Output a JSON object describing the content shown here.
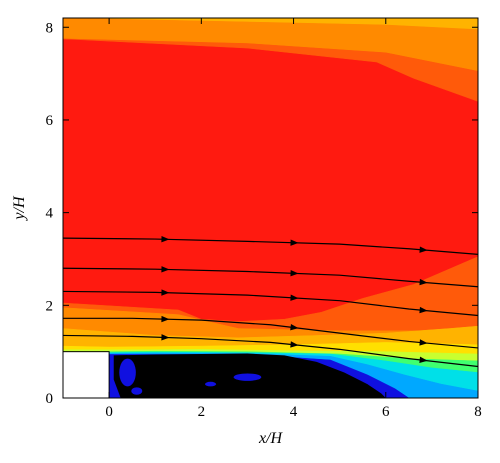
{
  "chart_data": {
    "type": "heatmap",
    "title": "",
    "xlabel": "x/H",
    "ylabel": "y/H",
    "xlim": [
      -1,
      8
    ],
    "ylim": [
      0,
      8.2
    ],
    "x_ticks": [
      0,
      2,
      4,
      6,
      8
    ],
    "y_ticks": [
      0,
      2,
      4,
      6,
      8
    ],
    "grid": false,
    "legend": "none",
    "step": {
      "x": [
        -1,
        0
      ],
      "y": [
        0,
        1
      ]
    },
    "colors": {
      "red": "#ff1a10",
      "orange_red": "#ff5a0a",
      "orange": "#ff8a00",
      "amber": "#ffb300",
      "yellow": "#ffe000",
      "lime": "#c8ff30",
      "green": "#40ff70",
      "cyan": "#00e0e8",
      "sky": "#00a8ff",
      "blue": "#1010e0",
      "recirculation": "#000000",
      "streamline": "#000000"
    },
    "contour_regions": [
      {
        "name": "top-yellow",
        "color_key": "amber",
        "points": [
          [
            -1,
            8.2
          ],
          [
            8,
            8.2
          ],
          [
            8,
            7.95
          ],
          [
            6,
            8.05
          ],
          [
            -1,
            8.2
          ]
        ]
      },
      {
        "name": "top-orange",
        "color_key": "orange",
        "points": [
          [
            -1,
            8.2
          ],
          [
            6,
            8.05
          ],
          [
            8,
            7.95
          ],
          [
            8,
            7.05
          ],
          [
            6,
            7.45
          ],
          [
            3,
            7.65
          ],
          [
            -1,
            7.75
          ]
        ]
      },
      {
        "name": "top-orange-red",
        "color_key": "orange_red",
        "points": [
          [
            -1,
            7.75
          ],
          [
            3,
            7.65
          ],
          [
            6,
            7.45
          ],
          [
            8,
            7.05
          ],
          [
            8,
            6.4
          ],
          [
            6.6,
            6.9
          ],
          [
            5.8,
            7.25
          ],
          [
            3,
            7.55
          ],
          [
            -1,
            7.75
          ]
        ]
      },
      {
        "name": "right-orange-red",
        "color_key": "orange_red",
        "points": [
          [
            8,
            3.05
          ],
          [
            7.3,
            2.75
          ],
          [
            6.6,
            2.45
          ],
          [
            5.5,
            2.15
          ],
          [
            4.6,
            1.85
          ],
          [
            3.8,
            1.7
          ],
          [
            2.8,
            1.65
          ],
          [
            2,
            1.7
          ],
          [
            1.5,
            1.9
          ],
          [
            -1,
            2.05
          ],
          [
            -1,
            1.95
          ],
          [
            1.5,
            1.8
          ],
          [
            2.8,
            1.5
          ],
          [
            5,
            1.45
          ],
          [
            6.5,
            1.45
          ],
          [
            8,
            1.45
          ]
        ]
      },
      {
        "name": "band-orange",
        "color_key": "orange",
        "points": [
          [
            -1,
            1.95
          ],
          [
            1.5,
            1.8
          ],
          [
            2.8,
            1.5
          ],
          [
            5,
            1.45
          ],
          [
            6.5,
            1.45
          ],
          [
            8,
            1.45
          ],
          [
            8,
            1.55
          ],
          [
            7.4,
            1.5
          ],
          [
            6,
            1.4
          ],
          [
            4.5,
            1.35
          ],
          [
            2.8,
            1.3
          ],
          [
            1,
            1.35
          ],
          [
            -1,
            1.5
          ]
        ]
      },
      {
        "name": "band-amber",
        "color_key": "amber",
        "points": [
          [
            -1,
            1.5
          ],
          [
            1,
            1.35
          ],
          [
            2.8,
            1.3
          ],
          [
            4.5,
            1.35
          ],
          [
            6,
            1.4
          ],
          [
            7.4,
            1.5
          ],
          [
            8,
            1.55
          ],
          [
            8,
            1.15
          ],
          [
            6,
            1.2
          ],
          [
            4,
            1.15
          ],
          [
            2,
            1.12
          ],
          [
            0,
            1.1
          ],
          [
            -1,
            1.12
          ]
        ]
      },
      {
        "name": "band-yellow",
        "color_key": "yellow",
        "points": [
          [
            -1,
            1.12
          ],
          [
            0,
            1.1
          ],
          [
            2,
            1.12
          ],
          [
            4,
            1.15
          ],
          [
            6,
            1.2
          ],
          [
            8,
            1.15
          ],
          [
            8,
            0.95
          ],
          [
            6,
            1.0
          ],
          [
            4,
            1.02
          ],
          [
            2,
            1.05
          ],
          [
            0,
            1.04
          ],
          [
            -1,
            1.04
          ]
        ]
      },
      {
        "name": "band-lime",
        "color_key": "lime",
        "points": [
          [
            -1,
            1.04
          ],
          [
            0,
            1.04
          ],
          [
            2,
            1.05
          ],
          [
            4,
            1.02
          ],
          [
            6,
            1.0
          ],
          [
            8,
            0.95
          ],
          [
            8,
            0.8
          ],
          [
            6.5,
            0.85
          ],
          [
            5,
            0.95
          ],
          [
            3,
            1.0
          ],
          [
            1,
            1.01
          ],
          [
            0,
            1.0
          ],
          [
            -1,
            1.0
          ]
        ]
      },
      {
        "name": "band-green",
        "color_key": "green",
        "points": [
          [
            0,
            1.0
          ],
          [
            1,
            1.01
          ],
          [
            3,
            1.0
          ],
          [
            5,
            0.95
          ],
          [
            6.5,
            0.85
          ],
          [
            8,
            0.8
          ],
          [
            8,
            0.55
          ],
          [
            7,
            0.65
          ],
          [
            6,
            0.8
          ],
          [
            4.8,
            0.95
          ],
          [
            3,
            0.98
          ],
          [
            1,
            0.99
          ],
          [
            0,
            0.98
          ]
        ]
      },
      {
        "name": "band-cyan",
        "color_key": "cyan",
        "points": [
          [
            0,
            0.98
          ],
          [
            1,
            0.99
          ],
          [
            3,
            0.98
          ],
          [
            4.8,
            0.95
          ],
          [
            6,
            0.8
          ],
          [
            7,
            0.65
          ],
          [
            8,
            0.55
          ],
          [
            8,
            0.15
          ],
          [
            7.2,
            0.3
          ],
          [
            6.4,
            0.5
          ],
          [
            5.6,
            0.72
          ],
          [
            4.8,
            0.9
          ],
          [
            3,
            0.96
          ],
          [
            1,
            0.97
          ],
          [
            0,
            0.96
          ]
        ]
      },
      {
        "name": "band-sky",
        "color_key": "sky",
        "points": [
          [
            0,
            0.96
          ],
          [
            1,
            0.97
          ],
          [
            3,
            0.96
          ],
          [
            4.8,
            0.9
          ],
          [
            5.6,
            0.72
          ],
          [
            6.4,
            0.5
          ],
          [
            7.2,
            0.3
          ],
          [
            8,
            0.15
          ],
          [
            8,
            0
          ],
          [
            6.5,
            0
          ],
          [
            6.2,
            0.2
          ],
          [
            5.6,
            0.5
          ],
          [
            4.8,
            0.82
          ],
          [
            3,
            0.94
          ],
          [
            0,
            0.94
          ]
        ]
      },
      {
        "name": "bubble-blue",
        "color_key": "blue",
        "points": [
          [
            0,
            0.94
          ],
          [
            3,
            0.94
          ],
          [
            4.8,
            0.82
          ],
          [
            5.6,
            0.5
          ],
          [
            6.2,
            0.2
          ],
          [
            6.5,
            0
          ],
          [
            0,
            0
          ]
        ]
      }
    ],
    "recirculation_region": {
      "color_key": "recirculation",
      "points": [
        [
          0.1,
          0.92
        ],
        [
          1,
          0.94
        ],
        [
          2,
          0.95
        ],
        [
          3,
          0.96
        ],
        [
          3.8,
          0.92
        ],
        [
          4.5,
          0.78
        ],
        [
          5.1,
          0.55
        ],
        [
          5.6,
          0.3
        ],
        [
          5.9,
          0.1
        ],
        [
          6.0,
          0
        ],
        [
          0.25,
          0
        ],
        [
          0.1,
          0.4
        ]
      ]
    },
    "blue_spots": [
      {
        "cx": 0.4,
        "cy": 0.55,
        "rx": 0.18,
        "ry": 0.3
      },
      {
        "cx": 3.0,
        "cy": 0.45,
        "rx": 0.3,
        "ry": 0.08
      },
      {
        "cx": 2.2,
        "cy": 0.3,
        "rx": 0.12,
        "ry": 0.05
      },
      {
        "cx": 0.6,
        "cy": 0.15,
        "rx": 0.12,
        "ry": 0.08
      }
    ],
    "streamlines": [
      {
        "points": [
          [
            -1,
            3.45
          ],
          [
            1,
            3.43
          ],
          [
            3,
            3.38
          ],
          [
            5,
            3.32
          ],
          [
            6.5,
            3.22
          ],
          [
            8,
            3.1
          ]
        ],
        "arrow_x": [
          1.2,
          4.0,
          6.8
        ]
      },
      {
        "points": [
          [
            -1,
            2.8
          ],
          [
            1,
            2.78
          ],
          [
            3,
            2.73
          ],
          [
            5,
            2.65
          ],
          [
            6.5,
            2.52
          ],
          [
            8,
            2.4
          ]
        ],
        "arrow_x": [
          1.2,
          4.0,
          6.8
        ]
      },
      {
        "points": [
          [
            -1,
            2.3
          ],
          [
            1,
            2.28
          ],
          [
            3,
            2.22
          ],
          [
            5,
            2.1
          ],
          [
            6.5,
            1.92
          ],
          [
            8,
            1.78
          ]
        ],
        "arrow_x": [
          1.2,
          4.0,
          6.8
        ]
      },
      {
        "points": [
          [
            -1,
            1.72
          ],
          [
            0.5,
            1.72
          ],
          [
            2,
            1.68
          ],
          [
            3.5,
            1.58
          ],
          [
            5,
            1.4
          ],
          [
            6.5,
            1.22
          ],
          [
            8,
            1.08
          ]
        ],
        "arrow_x": [
          1.2,
          4.0,
          6.8
        ]
      },
      {
        "points": [
          [
            -1,
            1.35
          ],
          [
            0.5,
            1.33
          ],
          [
            2,
            1.28
          ],
          [
            3.5,
            1.2
          ],
          [
            5,
            1.05
          ],
          [
            6.5,
            0.85
          ],
          [
            8,
            0.68
          ]
        ],
        "arrow_x": [
          1.2,
          4.0,
          6.8
        ]
      }
    ]
  }
}
